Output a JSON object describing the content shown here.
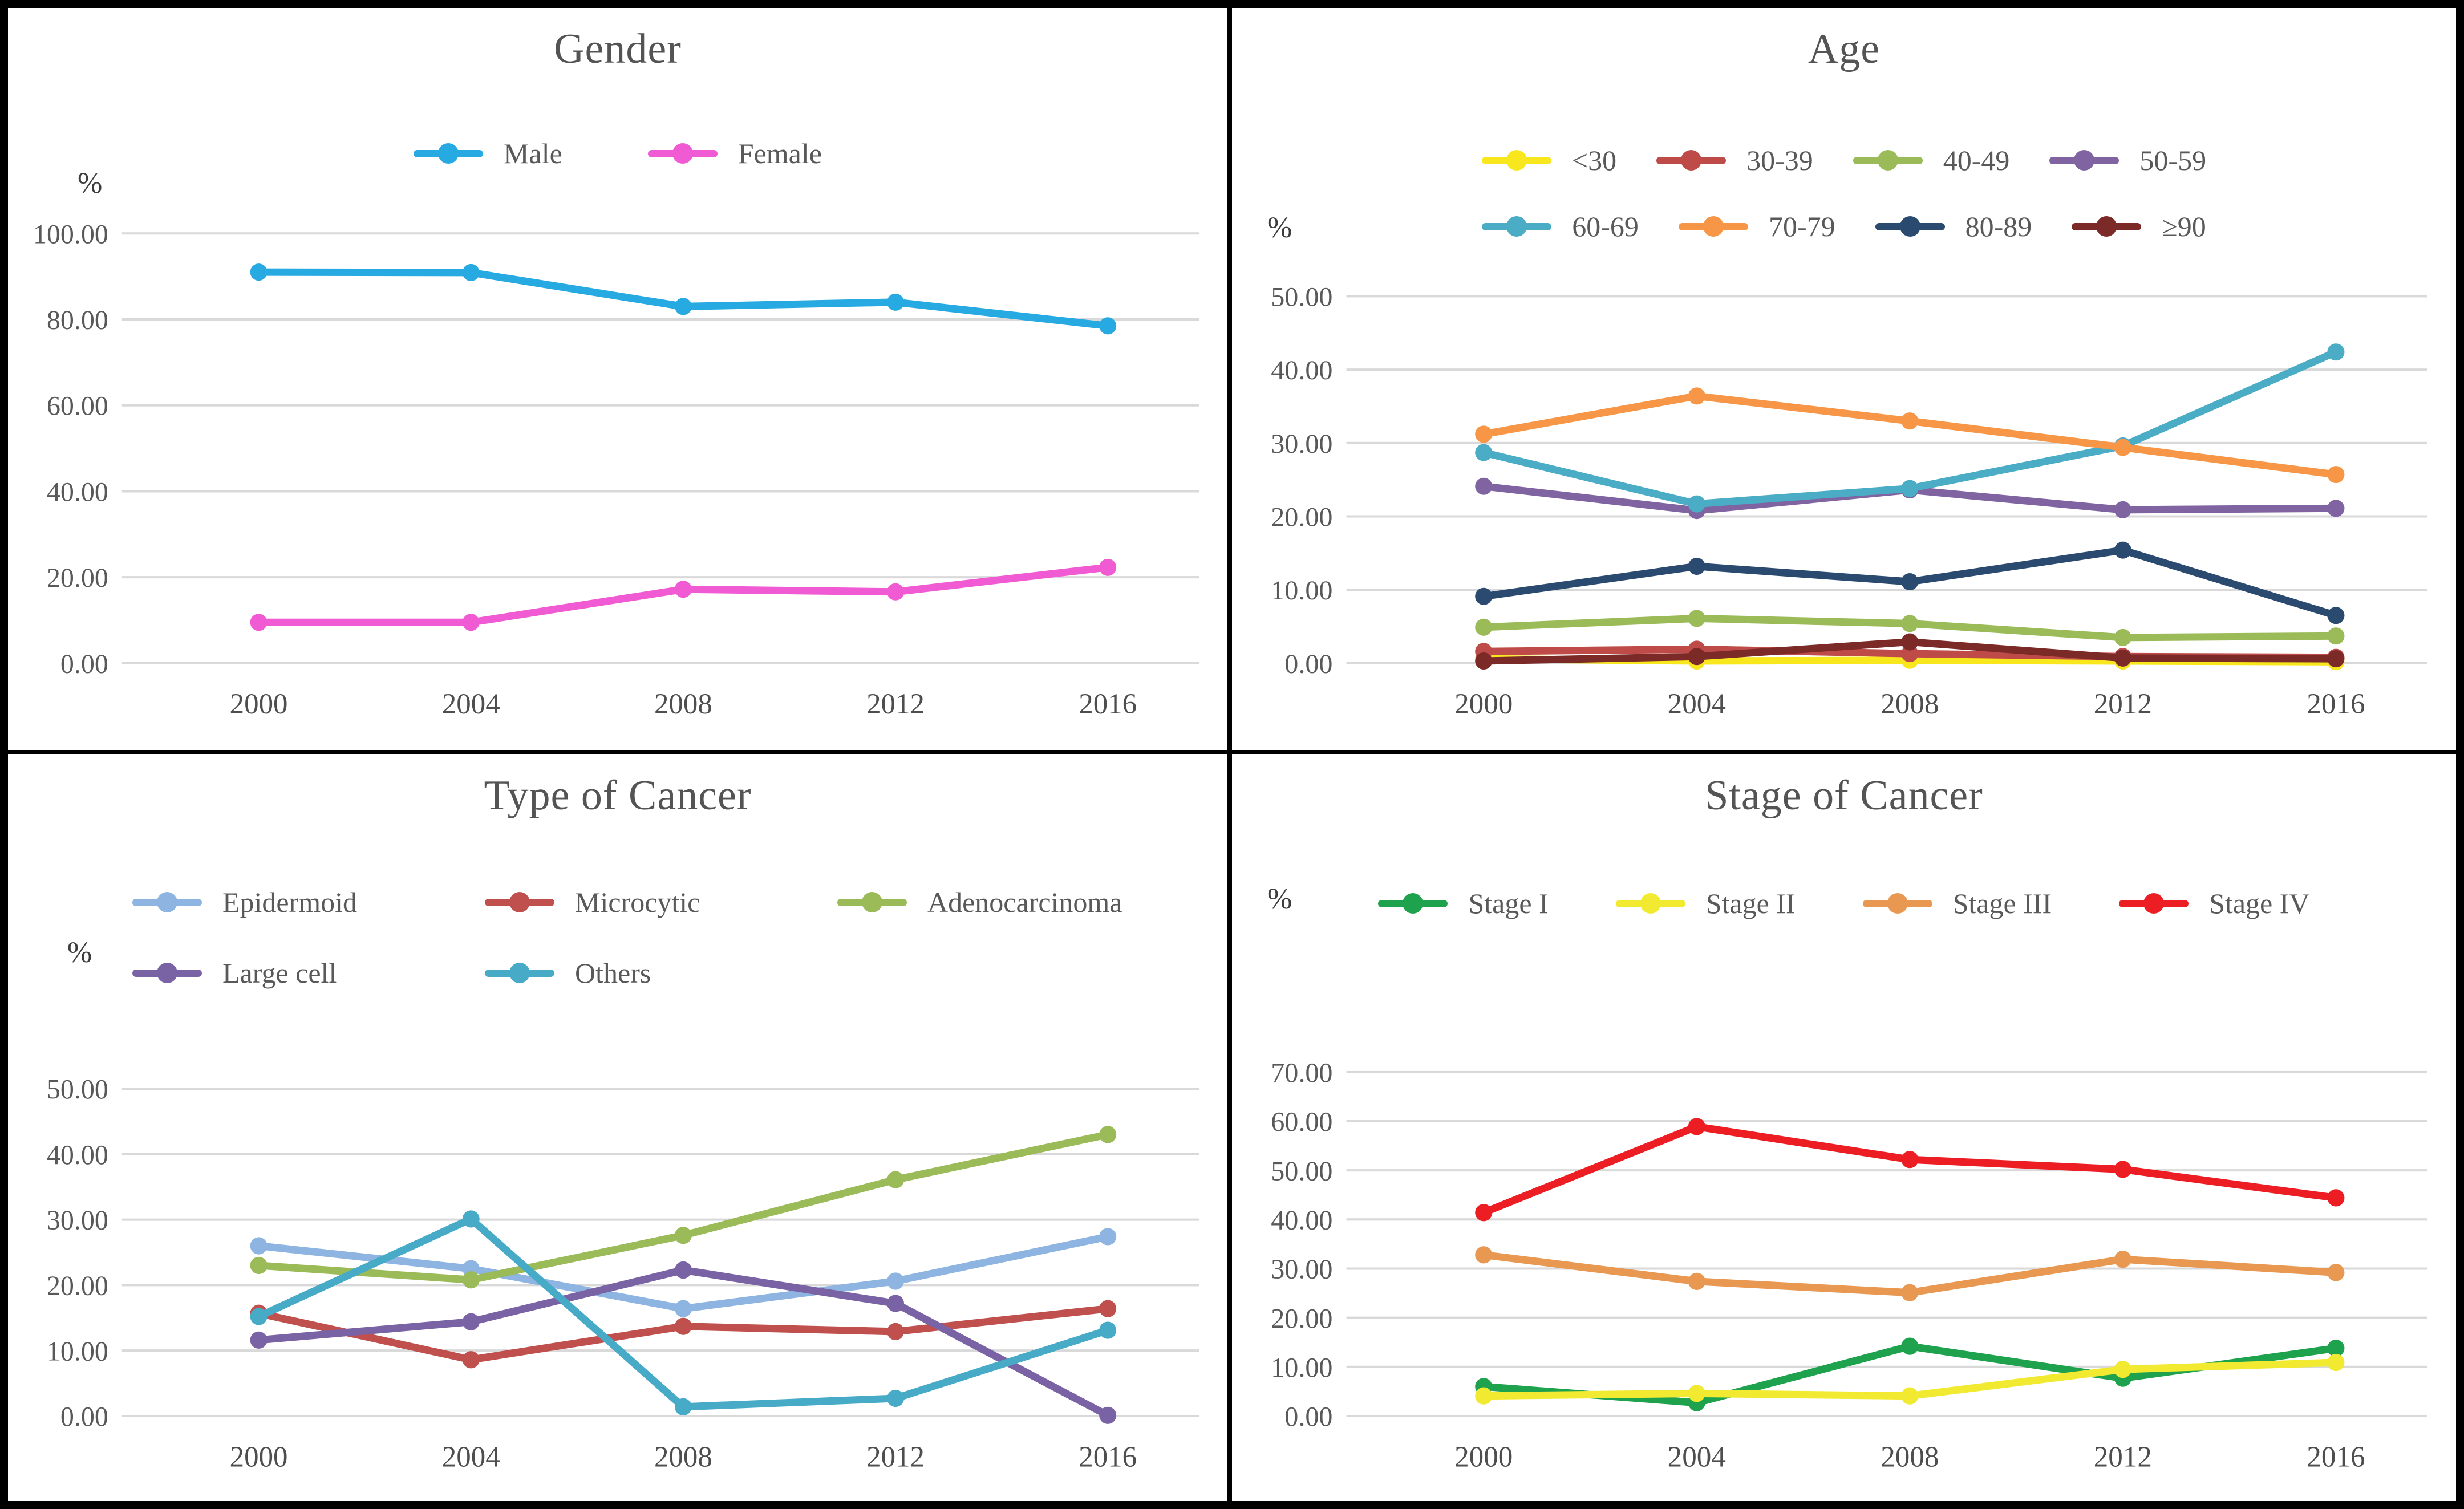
{
  "figure_title": "",
  "chart_data": [
    {
      "id": "gender",
      "type": "line",
      "title": "Gender",
      "percent_label": "%",
      "categories": [
        "2000",
        "2004",
        "2008",
        "2012",
        "2016"
      ],
      "y_axis": {
        "min": 0,
        "max": 100,
        "step": 20,
        "tick_format": "two-decimals",
        "grid": true
      },
      "legend_position": "top-center",
      "legend_rows": [
        [
          0,
          1
        ]
      ],
      "layout": {
        "top": 395,
        "zero": 1148
      },
      "series": [
        {
          "name": "Male",
          "color": "#27AAE1",
          "values": [
            91.0,
            90.9,
            83.0,
            84.0,
            78.5
          ]
        },
        {
          "name": "Female",
          "color": "#F05AD2",
          "values": [
            9.5,
            9.5,
            17.2,
            16.6,
            22.3
          ]
        }
      ]
    },
    {
      "id": "age",
      "type": "line",
      "title": "Age",
      "percent_label": "%",
      "categories": [
        "2000",
        "2004",
        "2008",
        "2012",
        "2016"
      ],
      "y_axis": {
        "min": 0,
        "max": 50,
        "step": 10,
        "tick_format": "two-decimals",
        "grid": true
      },
      "legend_position": "top-center",
      "legend_rows": [
        [
          0,
          1,
          2,
          3
        ],
        [
          4,
          5,
          6,
          7
        ]
      ],
      "layout": {
        "top": 505,
        "zero": 1148
      },
      "series": [
        {
          "name": "<30",
          "color": "#F8E71C",
          "values": [
            0.6,
            0.3,
            0.4,
            0.3,
            0.2
          ]
        },
        {
          "name": "30-39",
          "color": "#BE4B48",
          "values": [
            1.6,
            1.9,
            1.3,
            0.9,
            0.8
          ]
        },
        {
          "name": "40-49",
          "color": "#9BBB59",
          "values": [
            4.9,
            6.1,
            5.4,
            3.5,
            3.7
          ]
        },
        {
          "name": "50-59",
          "color": "#8064A2",
          "values": [
            24.1,
            20.8,
            23.6,
            20.9,
            21.1
          ]
        },
        {
          "name": "60-69",
          "color": "#4BACC6",
          "values": [
            28.7,
            21.7,
            23.8,
            29.6,
            42.4
          ]
        },
        {
          "name": "70-79",
          "color": "#F79646",
          "values": [
            31.2,
            36.4,
            33.0,
            29.4,
            25.7
          ]
        },
        {
          "name": "80-89",
          "color": "#2B4A6F",
          "values": [
            9.1,
            13.2,
            11.1,
            15.4,
            6.5
          ]
        },
        {
          "name": "≥90",
          "color": "#7C2A27",
          "values": [
            0.3,
            0.9,
            2.9,
            0.7,
            0.6
          ]
        }
      ]
    },
    {
      "id": "type-of-cancer",
      "type": "line",
      "title": "Type of Cancer",
      "percent_label": "%",
      "categories": [
        "2000",
        "2004",
        "2008",
        "2012",
        "2016"
      ],
      "y_axis": {
        "min": 0,
        "max": 50,
        "step": 10,
        "tick_format": "two-decimals",
        "grid": true
      },
      "legend_position": "top-left",
      "legend_rows": [
        [
          0,
          1,
          2
        ],
        [
          3,
          4
        ]
      ],
      "layout": {
        "top": 582,
        "zero": 1152
      },
      "series": [
        {
          "name": "Epidermoid",
          "color": "#8EB4E2",
          "values": [
            26.0,
            22.5,
            16.4,
            20.6,
            27.4
          ]
        },
        {
          "name": "Microcytic",
          "color": "#C0504D",
          "values": [
            15.7,
            8.6,
            13.7,
            12.9,
            16.4
          ]
        },
        {
          "name": "Adenocarcinoma",
          "color": "#9BBB59",
          "values": [
            23.0,
            20.8,
            27.6,
            36.1,
            43.0
          ]
        },
        {
          "name": "Large cell",
          "color": "#7A63A4",
          "values": [
            11.6,
            14.4,
            22.3,
            17.2,
            0.1
          ]
        },
        {
          "name": "Others",
          "color": "#47ABC8",
          "values": [
            15.2,
            30.1,
            1.4,
            2.7,
            13.1
          ]
        }
      ]
    },
    {
      "id": "stage-of-cancer",
      "type": "line",
      "title": "Stage of Cancer",
      "percent_label": "%",
      "categories": [
        "2000",
        "2004",
        "2008",
        "2012",
        "2016"
      ],
      "y_axis": {
        "min": 0,
        "max": 70,
        "step": 10,
        "tick_format": "two-decimals",
        "grid": true
      },
      "legend_position": "top-center",
      "legend_rows": [
        [
          0,
          1,
          2,
          3
        ]
      ],
      "layout": {
        "top": 553,
        "zero": 1152
      },
      "series": [
        {
          "name": "Stage I",
          "color": "#1FA24D",
          "values": [
            6.0,
            2.7,
            14.2,
            7.7,
            13.8
          ]
        },
        {
          "name": "Stage II",
          "color": "#F2EA30",
          "values": [
            4.1,
            4.6,
            4.1,
            9.5,
            10.9
          ]
        },
        {
          "name": "Stage III",
          "color": "#E99852",
          "values": [
            32.8,
            27.4,
            25.1,
            31.9,
            29.2
          ]
        },
        {
          "name": "Stage IV",
          "color": "#EC1E24",
          "values": [
            41.4,
            58.9,
            52.2,
            50.2,
            44.4
          ]
        }
      ]
    }
  ]
}
